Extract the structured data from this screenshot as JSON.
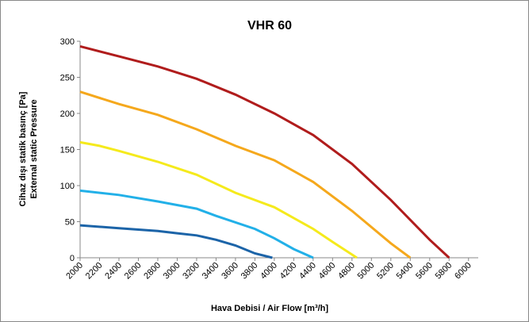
{
  "chart_data": {
    "type": "line",
    "title": "VHR 60",
    "ylabel": [
      "Cihaz dışı statik basınç [Pa]",
      "External static Pressure"
    ],
    "xlabel": "Hava Debisi / Air Flow [m³/h]",
    "xlim": [
      2000,
      6100
    ],
    "xticks": [
      2000,
      2200,
      2400,
      2600,
      2800,
      3000,
      3200,
      3400,
      3600,
      3800,
      4000,
      4200,
      4400,
      4600,
      4800,
      5000,
      5200,
      5400,
      5600,
      5800,
      6000
    ],
    "ylim": [
      0,
      300
    ],
    "yticks": [
      0,
      50,
      100,
      150,
      200,
      250,
      300
    ],
    "grid": false,
    "series": [
      {
        "color": "#b01c1c",
        "x": [
          2000,
          2400,
          2800,
          3200,
          3600,
          4000,
          4400,
          4800,
          5200,
          5600,
          5800
        ],
        "values": [
          293,
          279,
          265,
          248,
          226,
          200,
          170,
          130,
          80,
          25,
          0
        ]
      },
      {
        "color": "#f5a81c",
        "x": [
          2000,
          2400,
          2800,
          3200,
          3600,
          4000,
          4400,
          4800,
          5200,
          5400
        ],
        "values": [
          230,
          213,
          198,
          178,
          155,
          135,
          105,
          65,
          20,
          0
        ]
      },
      {
        "color": "#f5ea1c",
        "x": [
          2000,
          2200,
          2400,
          2800,
          3200,
          3600,
          4000,
          4400,
          4600,
          4850
        ],
        "values": [
          160,
          155,
          148,
          133,
          115,
          90,
          70,
          40,
          22,
          0
        ]
      },
      {
        "color": "#22b0e8",
        "x": [
          2000,
          2400,
          2800,
          3200,
          3400,
          3800,
          4000,
          4200,
          4400
        ],
        "values": [
          93,
          87,
          78,
          68,
          58,
          40,
          27,
          12,
          0
        ]
      },
      {
        "color": "#1c64a8",
        "x": [
          2000,
          2400,
          2800,
          3000,
          3200,
          3400,
          3600,
          3800,
          3980
        ],
        "values": [
          45,
          41,
          37,
          34,
          31,
          25,
          17,
          6,
          0
        ]
      }
    ]
  }
}
